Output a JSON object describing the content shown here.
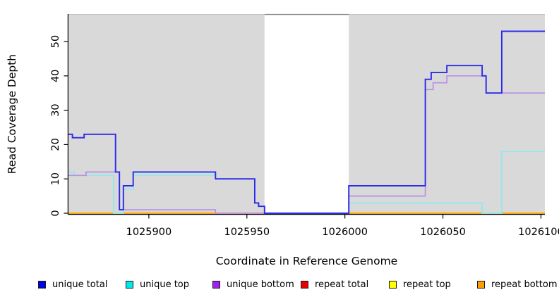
{
  "figure": {
    "x_axis_title": "Coordinate in Reference Genome",
    "y_axis_title": "Read Coverage Depth"
  },
  "chart_data": {
    "type": "line",
    "subtype": "step-after",
    "title": "",
    "xlabel": "Coordinate in Reference Genome",
    "ylabel": "Read Coverage Depth",
    "xlim": [
      1025859,
      1026102
    ],
    "ylim": [
      0,
      58
    ],
    "x_ticks": [
      1025900,
      1025950,
      1026000,
      1026050,
      1026100
    ],
    "y_ticks": [
      0,
      10,
      20,
      30,
      40,
      50
    ],
    "grid": false,
    "panel_bg": "#d9d9d9",
    "gap_band": {
      "from": 1025959,
      "to": 1026002,
      "color": "#ffffff"
    },
    "axis_color": "#000000",
    "legend_position": "bottom",
    "paint_order": [
      "repeat total",
      "repeat top",
      "repeat bottom",
      "unique top",
      "unique bottom",
      "unique total"
    ],
    "series": [
      {
        "name": "unique total",
        "line_color": "#2a2aea",
        "legend_color": "#0000e6",
        "line_width": 1.9,
        "points": [
          [
            1025859,
            23
          ],
          [
            1025861,
            22
          ],
          [
            1025867,
            23
          ],
          [
            1025883,
            12
          ],
          [
            1025885,
            1
          ],
          [
            1025887,
            8
          ],
          [
            1025892,
            12
          ],
          [
            1025934,
            10
          ],
          [
            1025954,
            3
          ],
          [
            1025956,
            2
          ],
          [
            1025959,
            0
          ],
          [
            1026002,
            8
          ],
          [
            1026041,
            39
          ],
          [
            1026044,
            41
          ],
          [
            1026052,
            43
          ],
          [
            1026070,
            40
          ],
          [
            1026072,
            35
          ],
          [
            1026080,
            53
          ]
        ]
      },
      {
        "name": "unique top",
        "line_color": "#8fe9ec",
        "legend_color": "#00e8e8",
        "line_width": 1.7,
        "points": [
          [
            1025859,
            12
          ],
          [
            1025862,
            11
          ],
          [
            1025882,
            0
          ],
          [
            1025887,
            7
          ],
          [
            1025892,
            11
          ],
          [
            1025934,
            10
          ],
          [
            1025954,
            3
          ],
          [
            1025956,
            2
          ],
          [
            1025959,
            0
          ],
          [
            1026002,
            3
          ],
          [
            1026070,
            0
          ],
          [
            1026080,
            18
          ]
        ]
      },
      {
        "name": "unique bottom",
        "line_color": "#b98fe4",
        "legend_color": "#a020f0",
        "line_width": 1.7,
        "points": [
          [
            1025859,
            11
          ],
          [
            1025868,
            12
          ],
          [
            1025885,
            1
          ],
          [
            1025934,
            0
          ],
          [
            1026002,
            5
          ],
          [
            1026041,
            36
          ],
          [
            1026045,
            38
          ],
          [
            1026052,
            40
          ],
          [
            1026072,
            35
          ]
        ]
      },
      {
        "name": "repeat total",
        "line_color": "#d22222",
        "legend_color": "#e80000",
        "line_width": 1.7,
        "points": [
          [
            1025859,
            0
          ]
        ]
      },
      {
        "name": "repeat top",
        "line_color": "#ffff00",
        "legend_color": "#ffff00",
        "line_width": 1.7,
        "points": [
          [
            1025859,
            0
          ]
        ]
      },
      {
        "name": "repeat bottom",
        "line_color": "#ff9e00",
        "legend_color": "#ff9e00",
        "line_width": 1.8,
        "points": [
          [
            1025859,
            0
          ]
        ]
      }
    ]
  }
}
